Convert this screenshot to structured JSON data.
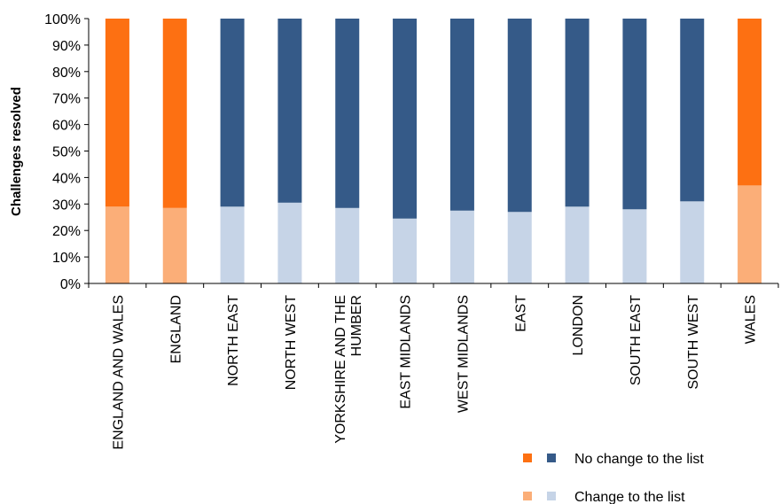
{
  "chart_data": {
    "type": "bar",
    "stacked": true,
    "title": "",
    "xlabel": "",
    "ylabel": "Challenges resolved",
    "ylim": [
      0,
      100
    ],
    "yticks": [
      "0%",
      "10%",
      "20%",
      "30%",
      "40%",
      "50%",
      "60%",
      "70%",
      "80%",
      "90%",
      "100%"
    ],
    "categories": [
      [
        "ENGLAND AND WALES"
      ],
      [
        "ENGLAND"
      ],
      [
        "NORTH EAST"
      ],
      [
        "NORTH WEST"
      ],
      [
        "YORKSHIRE AND THE",
        "HUMBER"
      ],
      [
        "EAST MIDLANDS"
      ],
      [
        "WEST MIDLANDS"
      ],
      [
        "EAST"
      ],
      [
        "LONDON"
      ],
      [
        "SOUTH EAST"
      ],
      [
        "SOUTH WEST"
      ],
      [
        "WALES"
      ]
    ],
    "series": [
      {
        "name": "Change to the list",
        "values": [
          29,
          28.5,
          29,
          30.5,
          28.5,
          24.5,
          27.5,
          27,
          29,
          28,
          31,
          37
        ],
        "colors": [
          "#fbae78",
          "#fbae78",
          "#c6d4e7",
          "#c6d4e7",
          "#c6d4e7",
          "#c6d4e7",
          "#c6d4e7",
          "#c6d4e7",
          "#c6d4e7",
          "#c6d4e7",
          "#c6d4e7",
          "#fbae78"
        ]
      },
      {
        "name": "No change to the list",
        "values": [
          71,
          71.5,
          71,
          69.5,
          71.5,
          75.5,
          72.5,
          73,
          71,
          72,
          69,
          63
        ],
        "colors": [
          "#fd7012",
          "#fd7012",
          "#355a88",
          "#355a88",
          "#355a88",
          "#355a88",
          "#355a88",
          "#355a88",
          "#355a88",
          "#355a88",
          "#355a88",
          "#fd7012"
        ]
      }
    ],
    "legend": {
      "placement": "bottom-right",
      "items": [
        {
          "label": "No change to the list",
          "swatches": [
            "#fd7012",
            "#355a88"
          ]
        },
        {
          "label": "Change to the list",
          "swatches": [
            "#fbae78",
            "#c6d4e7"
          ]
        }
      ]
    },
    "grid": false
  }
}
